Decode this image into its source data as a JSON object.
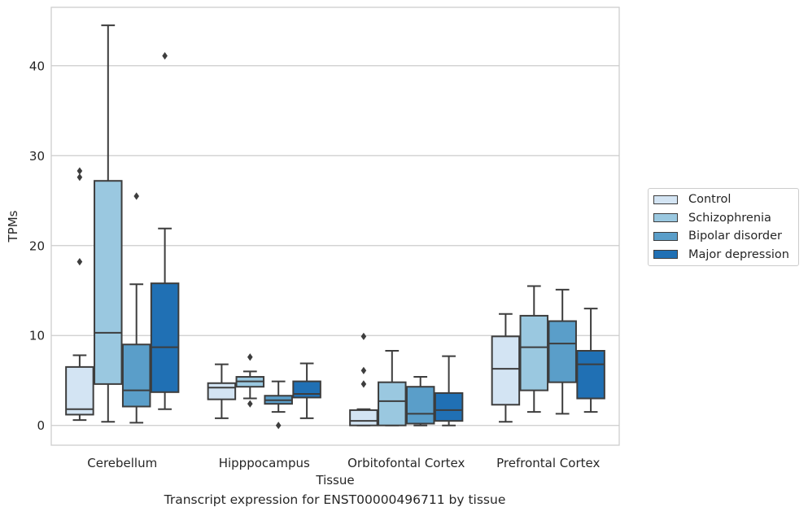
{
  "chart_data": {
    "type": "box",
    "title": "",
    "caption": "Transcript expression for ENST00000496711 by tissue",
    "xlabel": "Tissue",
    "ylabel": "TPMs",
    "ylim": [
      -2.2,
      46.5
    ],
    "yticks": [
      0,
      10,
      20,
      30,
      40
    ],
    "grid": "horizontal",
    "legend_position": "right",
    "categories": [
      "Cerebellum",
      "Hipppocampus",
      "Orbitofontal Cortex",
      "Prefrontal Cortex"
    ],
    "series": [
      {
        "name": "Control",
        "color": "#d3e4f3",
        "boxes": [
          {
            "whislo": 0.6,
            "q1": 1.2,
            "med": 1.8,
            "q3": 6.5,
            "whishi": 7.8,
            "fliers": [
              18.2,
              27.6,
              28.3
            ]
          },
          {
            "whislo": 0.8,
            "q1": 2.9,
            "med": 4.2,
            "q3": 4.7,
            "whishi": 6.8,
            "fliers": []
          },
          {
            "whislo": 0.0,
            "q1": 0.0,
            "med": 0.5,
            "q3": 1.7,
            "whishi": 1.8,
            "fliers": [
              4.6,
              6.1,
              9.9
            ]
          },
          {
            "whislo": 0.4,
            "q1": 2.3,
            "med": 6.3,
            "q3": 9.9,
            "whishi": 12.4,
            "fliers": []
          }
        ]
      },
      {
        "name": "Schizophrenia",
        "color": "#9ac8e0",
        "boxes": [
          {
            "whislo": 0.4,
            "q1": 4.6,
            "med": 10.3,
            "q3": 27.2,
            "whishi": 44.5,
            "fliers": []
          },
          {
            "whislo": 3.0,
            "q1": 4.3,
            "med": 4.9,
            "q3": 5.4,
            "whishi": 6.0,
            "fliers": [
              2.4,
              7.6
            ]
          },
          {
            "whislo": 0.0,
            "q1": 0.0,
            "med": 2.7,
            "q3": 4.8,
            "whishi": 8.3,
            "fliers": []
          },
          {
            "whislo": 1.5,
            "q1": 3.9,
            "med": 8.7,
            "q3": 12.2,
            "whishi": 15.5,
            "fliers": []
          }
        ]
      },
      {
        "name": "Bipolar disorder",
        "color": "#5a9ec9",
        "boxes": [
          {
            "whislo": 0.3,
            "q1": 2.1,
            "med": 3.9,
            "q3": 9.0,
            "whishi": 15.7,
            "fliers": [
              25.5
            ]
          },
          {
            "whislo": 1.5,
            "q1": 2.4,
            "med": 2.8,
            "q3": 3.3,
            "whishi": 4.9,
            "fliers": [
              0.0
            ]
          },
          {
            "whislo": 0.0,
            "q1": 0.2,
            "med": 1.3,
            "q3": 4.3,
            "whishi": 5.4,
            "fliers": []
          },
          {
            "whislo": 1.3,
            "q1": 4.8,
            "med": 9.1,
            "q3": 11.6,
            "whishi": 15.1,
            "fliers": []
          }
        ]
      },
      {
        "name": "Major depression",
        "color": "#2070b4",
        "boxes": [
          {
            "whislo": 1.8,
            "q1": 3.7,
            "med": 8.7,
            "q3": 15.8,
            "whishi": 21.9,
            "fliers": [
              41.1
            ]
          },
          {
            "whislo": 0.8,
            "q1": 3.1,
            "med": 3.5,
            "q3": 4.9,
            "whishi": 6.9,
            "fliers": []
          },
          {
            "whislo": 0.0,
            "q1": 0.5,
            "med": 1.7,
            "q3": 3.6,
            "whishi": 7.7,
            "fliers": []
          },
          {
            "whislo": 1.5,
            "q1": 3.0,
            "med": 6.8,
            "q3": 8.3,
            "whishi": 13.0,
            "fliers": []
          }
        ]
      }
    ]
  }
}
